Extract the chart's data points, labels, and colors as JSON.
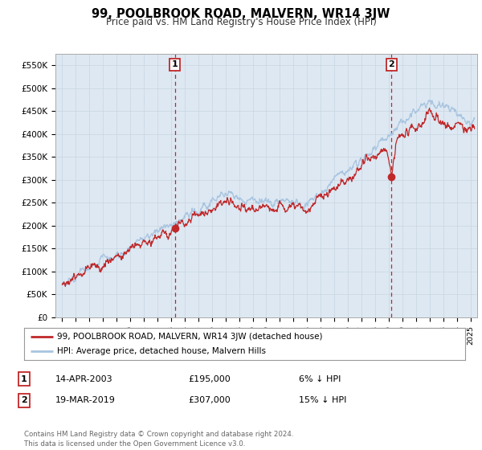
{
  "title": "99, POOLBROOK ROAD, MALVERN, WR14 3JW",
  "subtitle": "Price paid vs. HM Land Registry's House Price Index (HPI)",
  "ylabel_ticks": [
    "£0",
    "£50K",
    "£100K",
    "£150K",
    "£200K",
    "£250K",
    "£300K",
    "£350K",
    "£400K",
    "£450K",
    "£500K",
    "£550K"
  ],
  "ylim": [
    0,
    575000
  ],
  "xlim_start": 1994.5,
  "xlim_end": 2025.5,
  "hpi_color": "#a8c4e0",
  "price_color": "#c0282a",
  "transaction1_date": 2003.28,
  "transaction1_price": 195000,
  "transaction1_label": "1",
  "transaction2_date": 2019.21,
  "transaction2_price": 307000,
  "transaction2_label": "2",
  "legend_label1": "99, POOLBROOK ROAD, MALVERN, WR14 3JW (detached house)",
  "legend_label2": "HPI: Average price, detached house, Malvern Hills",
  "annotation1_date": "14-APR-2003",
  "annotation1_price": "£195,000",
  "annotation1_pct": "6% ↓ HPI",
  "annotation2_date": "19-MAR-2019",
  "annotation2_price": "£307,000",
  "annotation2_pct": "15% ↓ HPI",
  "footer": "Contains HM Land Registry data © Crown copyright and database right 2024.\nThis data is licensed under the Open Government Licence v3.0.",
  "bg_color": "#ffffff",
  "grid_color": "#c8d4e0",
  "plot_bg_color": "#dde8f2"
}
